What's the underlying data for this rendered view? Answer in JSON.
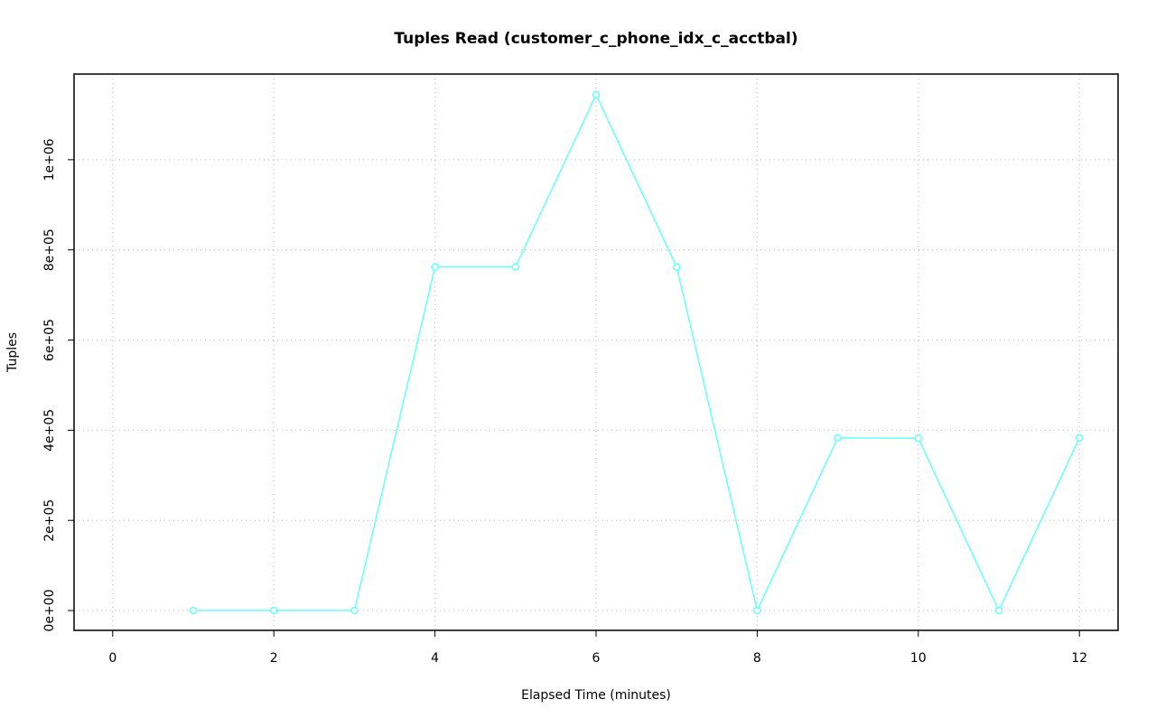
{
  "chart_data": {
    "type": "line",
    "title": "Tuples Read (customer_c_phone_idx_c_acctbal)",
    "x_label": "Elapsed Time (minutes)",
    "y_label": "Tuples",
    "x": [
      1,
      2,
      3,
      4,
      5,
      6,
      7,
      8,
      9,
      10,
      11,
      12
    ],
    "series": [
      {
        "color": "#66ffff",
        "values": [
          0,
          0,
          0,
          762000,
          762000,
          1144000,
          762000,
          0,
          383000,
          382000,
          0,
          383000
        ]
      }
    ],
    "xlim": [
      -0.48,
      12.48
    ],
    "ylim": [
      -44000,
      1190000
    ],
    "xticks": [
      0,
      2,
      4,
      6,
      8,
      10,
      12
    ],
    "yticks": [
      {
        "value": 0,
        "label": "0e+00"
      },
      {
        "value": 200000,
        "label": "2e+05"
      },
      {
        "value": 400000,
        "label": "4e+05"
      },
      {
        "value": 600000,
        "label": "6e+05"
      },
      {
        "value": 800000,
        "label": "8e+05"
      },
      {
        "value": 1000000,
        "label": "1e+06"
      }
    ],
    "grid": true
  }
}
